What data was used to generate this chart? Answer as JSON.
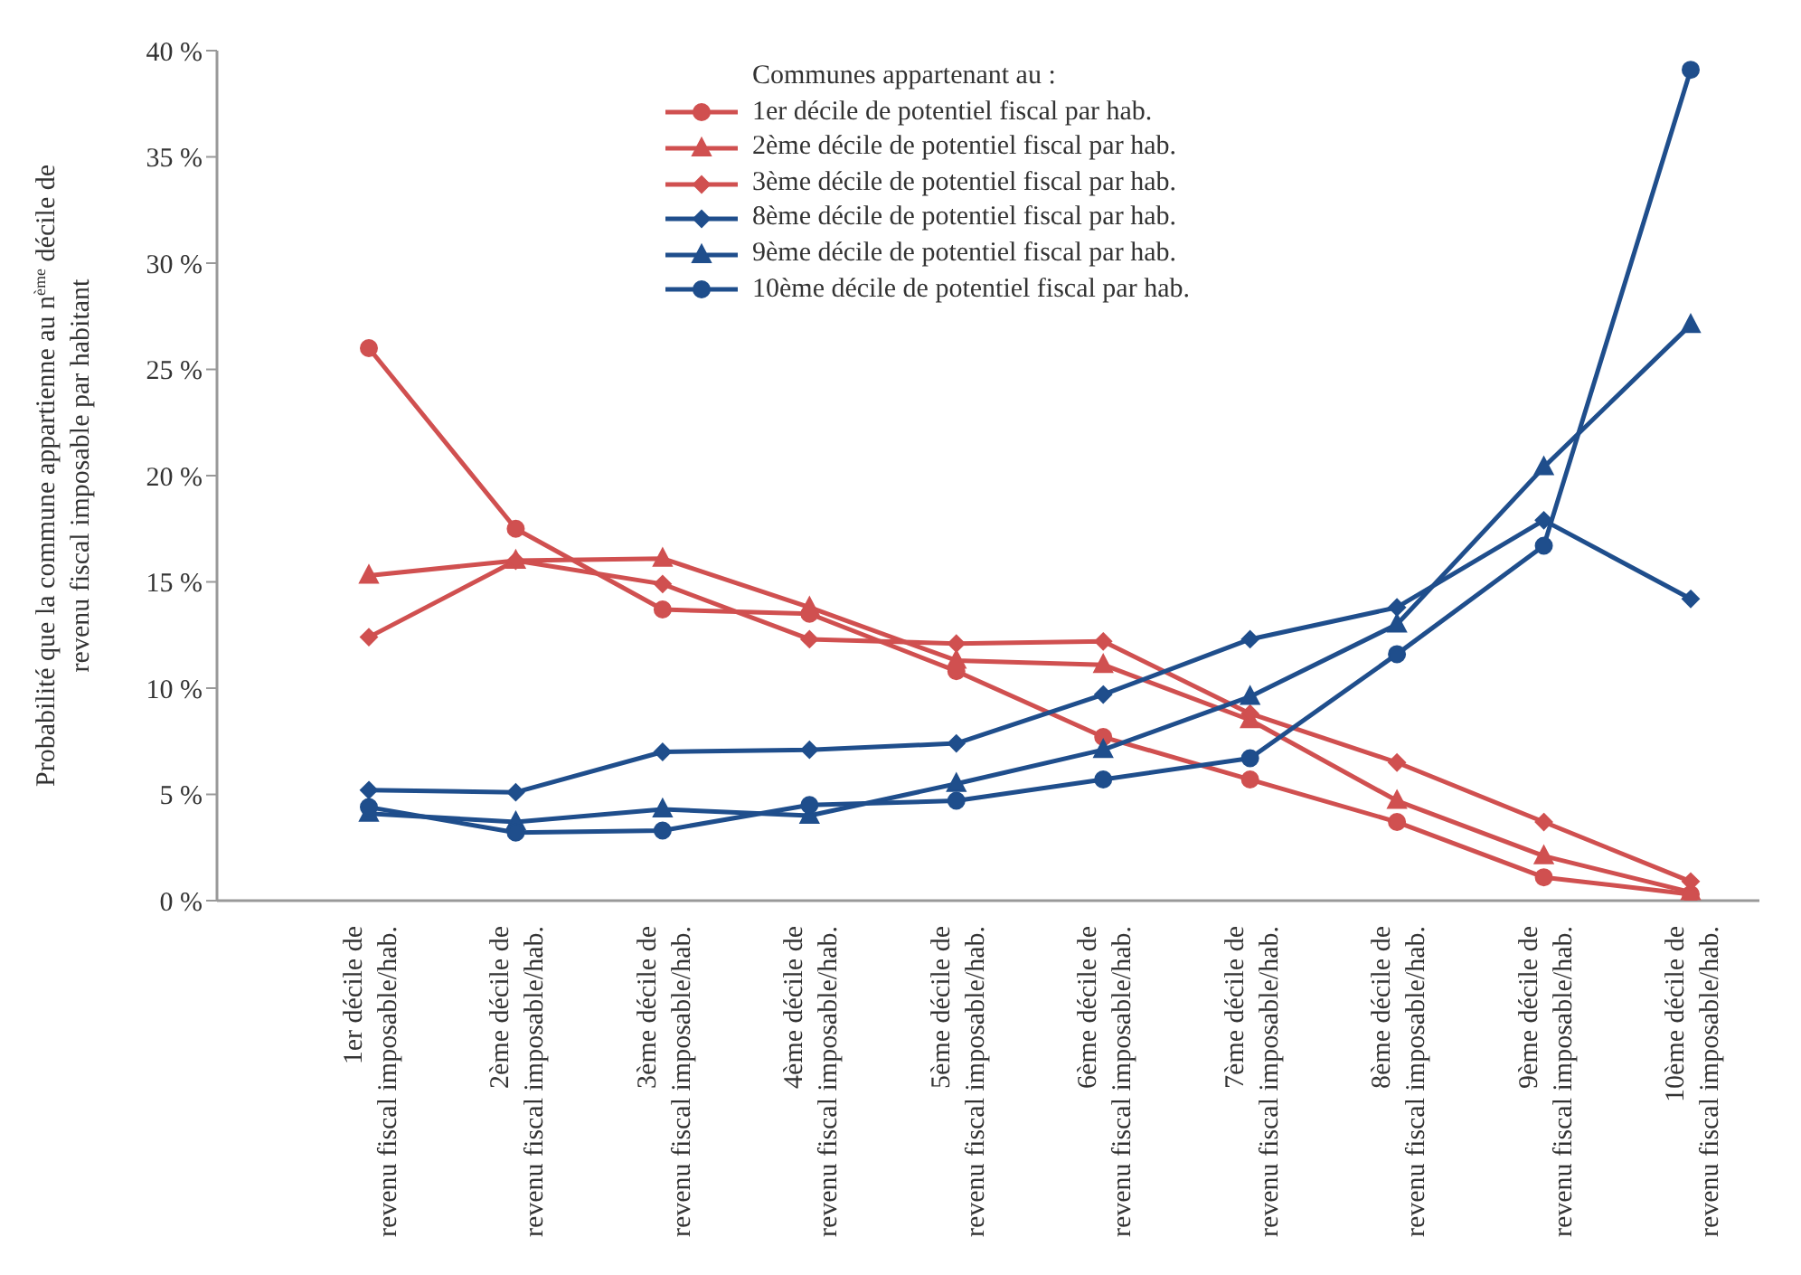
{
  "chart_data": {
    "type": "line",
    "ylabel": "Probabilité que la commune appartienne au n$^{ème}$ décile de revenu fiscal imposable par habitant",
    "legend_title": "Communes appartenant au :",
    "categories": [
      "1er décile de revenu fiscal imposable/hab.",
      "2ème décile de revenu fiscal imposable/hab.",
      "3ème décile de revenu fiscal imposable/hab.",
      "4ème décile de revenu fiscal imposable/hab.",
      "5ème décile de revenu fiscal imposable/hab.",
      "6ème décile de revenu fiscal imposable/hab.",
      "7ème décile de revenu fiscal imposable/hab.",
      "8ème décile de revenu fiscal imposable/hab.",
      "9ème décile de revenu fiscal imposable/hab.",
      "10ème décile de revenu fiscal imposable/hab."
    ],
    "series": [
      {
        "name": "1er décile de potentiel fiscal par hab.",
        "color": "#d05050",
        "marker": "circle",
        "values": [
          26.0,
          17.5,
          13.7,
          13.5,
          10.8,
          7.7,
          5.7,
          3.7,
          1.1,
          0.3
        ]
      },
      {
        "name": "2ème décile de potentiel fiscal par hab.",
        "color": "#d05050",
        "marker": "triangle",
        "values": [
          15.3,
          16.0,
          16.1,
          13.8,
          11.3,
          11.1,
          8.5,
          4.7,
          2.1,
          0.4
        ]
      },
      {
        "name": "3ème décile de potentiel fiscal par hab.",
        "color": "#d05050",
        "marker": "diamond",
        "values": [
          12.4,
          16.0,
          14.9,
          12.3,
          12.1,
          12.2,
          8.8,
          6.5,
          3.7,
          0.9
        ]
      },
      {
        "name": "8ème décile de potentiel fiscal par hab.",
        "color": "#1f4e8c",
        "marker": "diamond",
        "values": [
          5.2,
          5.1,
          7.0,
          7.1,
          7.4,
          9.7,
          12.3,
          13.8,
          17.9,
          14.2
        ]
      },
      {
        "name": "9ème décile de potentiel fiscal par hab.",
        "color": "#1f4e8c",
        "marker": "triangle",
        "values": [
          4.1,
          3.7,
          4.3,
          4.0,
          5.5,
          7.1,
          9.6,
          13.0,
          20.4,
          27.1
        ]
      },
      {
        "name": "10ème décile de potentiel fiscal par hab.",
        "color": "#1f4e8c",
        "marker": "circle",
        "values": [
          4.4,
          3.2,
          3.3,
          4.5,
          4.7,
          5.7,
          6.7,
          11.6,
          16.7,
          39.1
        ]
      }
    ],
    "ylim": [
      0,
      40
    ],
    "yticks": [
      {
        "value": 0,
        "label": "0 %"
      },
      {
        "value": 5,
        "label": "5 %"
      },
      {
        "value": 10,
        "label": "10 %"
      },
      {
        "value": 15,
        "label": "15 %"
      },
      {
        "value": 20,
        "label": "20 %"
      },
      {
        "value": 25,
        "label": "25 %"
      },
      {
        "value": 30,
        "label": "30 %"
      },
      {
        "value": 35,
        "label": "35 %"
      },
      {
        "value": 40,
        "label": "40 %"
      }
    ],
    "grid": false,
    "legend": "top",
    "line_style": "solid"
  }
}
